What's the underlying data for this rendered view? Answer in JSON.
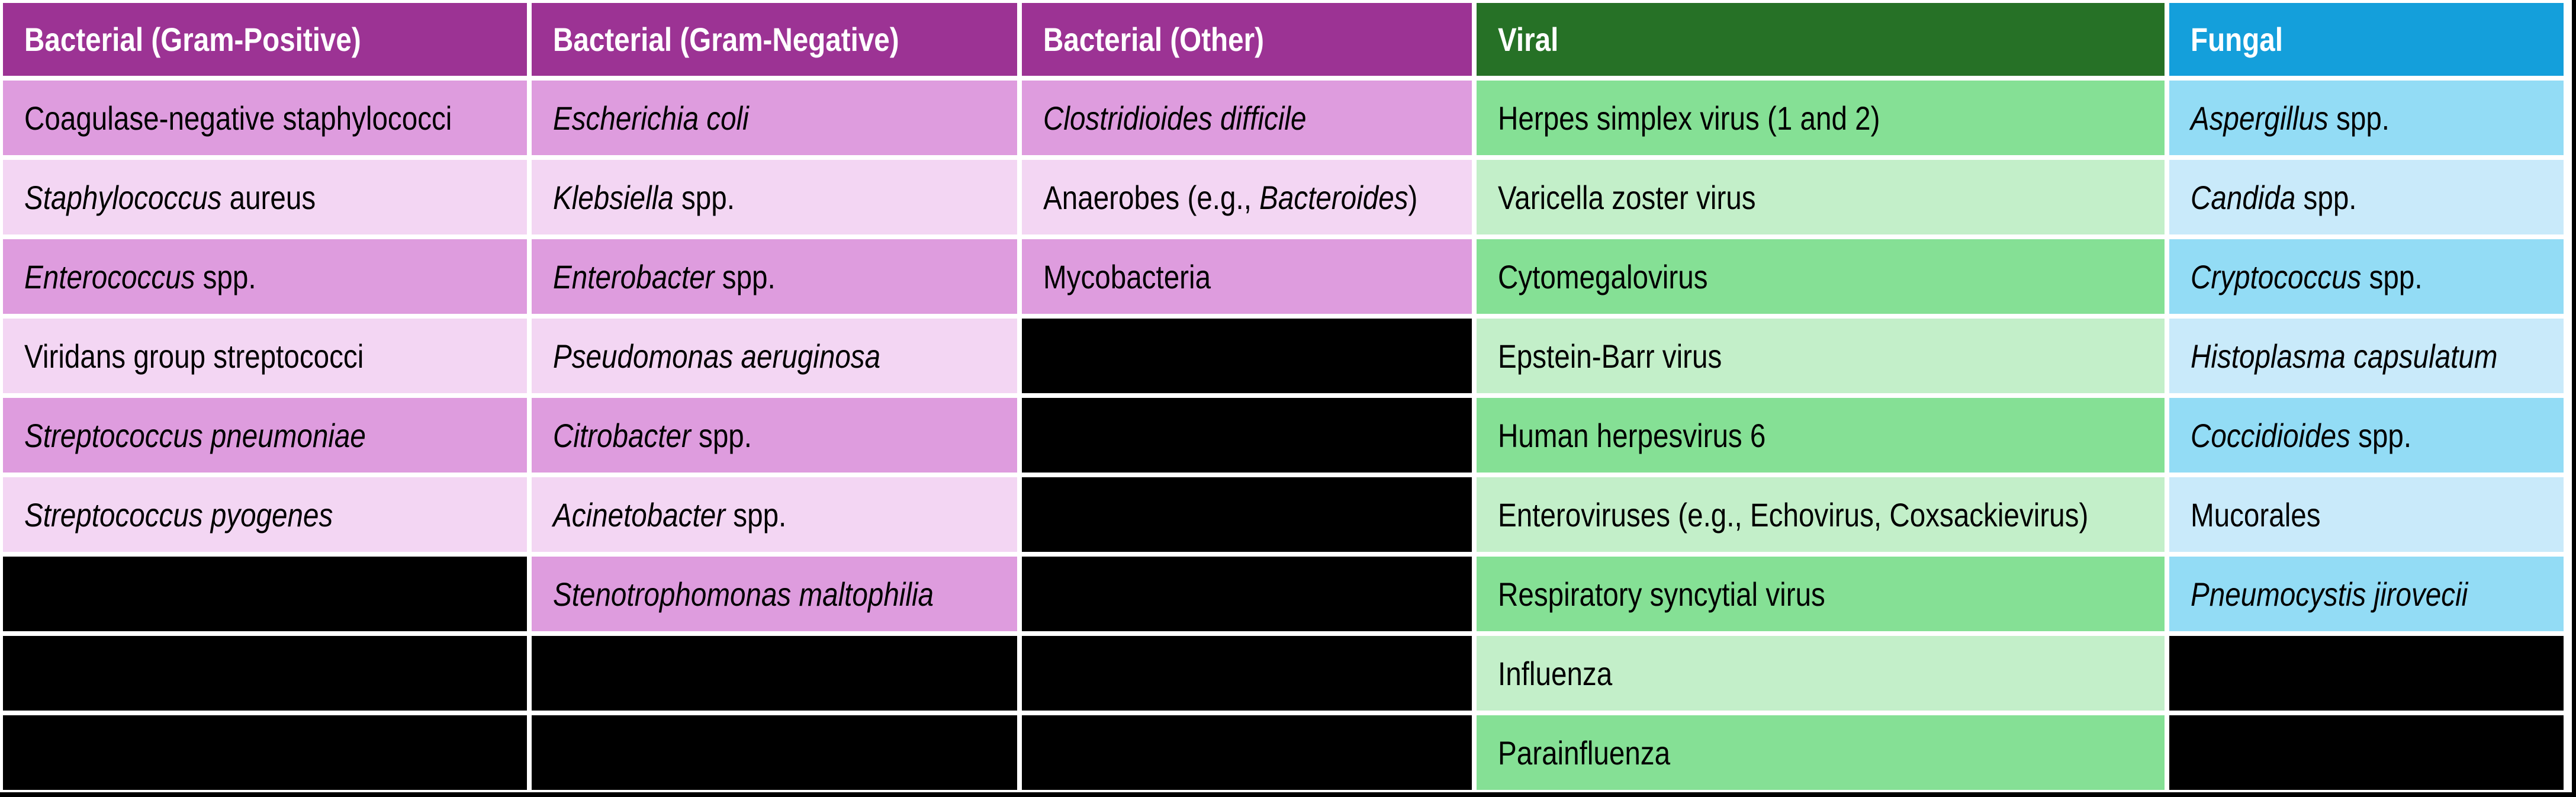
{
  "canvas": {
    "background": "#ffffff",
    "outer_frame_color": "#000000",
    "grid_gap_color": "#ffffff",
    "body_text_color": "#000000"
  },
  "table": {
    "columns": [
      {
        "id": "bacterial-gram-positive",
        "header": {
          "label": "Bacterial (Gram-Positive)",
          "bg": "#9C3394",
          "fg": "#ffffff"
        },
        "shades": {
          "dark": "#DE9CDE",
          "light": "#F3D6F3",
          "black": "#000000"
        },
        "cells": [
          {
            "shade": "dark",
            "runs": [
              {
                "text": "Coagulase-negative staphylococci",
                "italic": false
              }
            ]
          },
          {
            "shade": "light",
            "runs": [
              {
                "text": "Staphylococcus",
                "italic": true
              },
              {
                "text": " aureus",
                "italic": false
              }
            ]
          },
          {
            "shade": "dark",
            "runs": [
              {
                "text": "Enterococcus",
                "italic": true
              },
              {
                "text": " spp.",
                "italic": false
              }
            ]
          },
          {
            "shade": "light",
            "runs": [
              {
                "text": "Viridans group streptococci",
                "italic": false
              }
            ]
          },
          {
            "shade": "dark",
            "runs": [
              {
                "text": "Streptococcus pneumoniae",
                "italic": true
              }
            ]
          },
          {
            "shade": "light",
            "runs": [
              {
                "text": "Streptococcus pyogenes",
                "italic": true
              }
            ]
          },
          {
            "shade": "black",
            "runs": []
          },
          {
            "shade": "black",
            "runs": []
          },
          {
            "shade": "black",
            "runs": []
          }
        ]
      },
      {
        "id": "bacterial-gram-negative",
        "header": {
          "label": "Bacterial (Gram-Negative)",
          "bg": "#9C3394",
          "fg": "#ffffff"
        },
        "shades": {
          "dark": "#DE9CDE",
          "light": "#F3D6F3",
          "black": "#000000"
        },
        "cells": [
          {
            "shade": "dark",
            "runs": [
              {
                "text": "Escherichia coli",
                "italic": true
              }
            ]
          },
          {
            "shade": "light",
            "runs": [
              {
                "text": "Klebsiella",
                "italic": true
              },
              {
                "text": " spp.",
                "italic": false
              }
            ]
          },
          {
            "shade": "dark",
            "runs": [
              {
                "text": "Enterobacter",
                "italic": true
              },
              {
                "text": " spp.",
                "italic": false
              }
            ]
          },
          {
            "shade": "light",
            "runs": [
              {
                "text": "Pseudomonas aeruginosa",
                "italic": true
              }
            ]
          },
          {
            "shade": "dark",
            "runs": [
              {
                "text": "Citrobacter",
                "italic": true
              },
              {
                "text": " spp.",
                "italic": false
              }
            ]
          },
          {
            "shade": "light",
            "runs": [
              {
                "text": "Acinetobacter",
                "italic": true
              },
              {
                "text": " spp.",
                "italic": false
              }
            ]
          },
          {
            "shade": "dark",
            "runs": [
              {
                "text": "Stenotrophomonas maltophilia",
                "italic": true
              }
            ]
          },
          {
            "shade": "black",
            "runs": []
          },
          {
            "shade": "black",
            "runs": []
          }
        ]
      },
      {
        "id": "bacterial-other",
        "header": {
          "label": "Bacterial (Other)",
          "bg": "#9C3394",
          "fg": "#ffffff"
        },
        "shades": {
          "dark": "#DE9CDE",
          "light": "#F3D6F3",
          "black": "#000000"
        },
        "cells": [
          {
            "shade": "dark",
            "runs": [
              {
                "text": "Clostridioides difficile",
                "italic": true
              }
            ]
          },
          {
            "shade": "light",
            "runs": [
              {
                "text": "Anaerobes (e.g., ",
                "italic": false
              },
              {
                "text": "Bacteroides",
                "italic": true
              },
              {
                "text": ")",
                "italic": false
              }
            ]
          },
          {
            "shade": "dark",
            "runs": [
              {
                "text": "Mycobacteria",
                "italic": false
              }
            ]
          },
          {
            "shade": "black",
            "runs": []
          },
          {
            "shade": "black",
            "runs": []
          },
          {
            "shade": "black",
            "runs": []
          },
          {
            "shade": "black",
            "runs": []
          },
          {
            "shade": "black",
            "runs": []
          },
          {
            "shade": "black",
            "runs": []
          }
        ]
      },
      {
        "id": "viral",
        "header": {
          "label": "Viral",
          "bg": "#267126",
          "fg": "#ffffff"
        },
        "shades": {
          "dark": "#85E095",
          "light": "#C3EFC9",
          "black": "#000000"
        },
        "cells": [
          {
            "shade": "dark",
            "runs": [
              {
                "text": "Herpes simplex virus (1 and 2)",
                "italic": false
              }
            ]
          },
          {
            "shade": "light",
            "runs": [
              {
                "text": "Varicella zoster virus",
                "italic": false
              }
            ]
          },
          {
            "shade": "dark",
            "runs": [
              {
                "text": "Cytomegalovirus",
                "italic": false
              }
            ]
          },
          {
            "shade": "light",
            "runs": [
              {
                "text": "Epstein-Barr virus",
                "italic": false
              }
            ]
          },
          {
            "shade": "dark",
            "runs": [
              {
                "text": "Human herpesvirus 6",
                "italic": false
              }
            ]
          },
          {
            "shade": "light",
            "runs": [
              {
                "text": "Enteroviruses (e.g., Echovirus, Coxsackievirus)",
                "italic": false
              }
            ]
          },
          {
            "shade": "dark",
            "runs": [
              {
                "text": "Respiratory syncytial virus",
                "italic": false
              }
            ]
          },
          {
            "shade": "light",
            "runs": [
              {
                "text": "Influenza",
                "italic": false
              }
            ]
          },
          {
            "shade": "dark",
            "runs": [
              {
                "text": "Parainfluenza",
                "italic": false
              }
            ]
          }
        ]
      },
      {
        "id": "fungal",
        "header": {
          "label": "Fungal",
          "bg": "#149FDB",
          "fg": "#ffffff"
        },
        "shades": {
          "dark": "#93DCF5",
          "light": "#C9EAFA",
          "black": "#000000"
        },
        "cells": [
          {
            "shade": "dark",
            "runs": [
              {
                "text": "Aspergillus",
                "italic": true
              },
              {
                "text": " spp.",
                "italic": false
              }
            ]
          },
          {
            "shade": "light",
            "runs": [
              {
                "text": "Candida",
                "italic": true
              },
              {
                "text": " spp.",
                "italic": false
              }
            ]
          },
          {
            "shade": "dark",
            "runs": [
              {
                "text": "Cryptococcus",
                "italic": true
              },
              {
                "text": " spp.",
                "italic": false
              }
            ]
          },
          {
            "shade": "light",
            "runs": [
              {
                "text": "Histoplasma capsulatum",
                "italic": true
              }
            ]
          },
          {
            "shade": "dark",
            "runs": [
              {
                "text": "Coccidioides",
                "italic": true
              },
              {
                "text": " spp.",
                "italic": false
              }
            ]
          },
          {
            "shade": "light",
            "runs": [
              {
                "text": "Mucorales",
                "italic": false
              }
            ]
          },
          {
            "shade": "dark",
            "runs": [
              {
                "text": "Pneumocystis jirovecii",
                "italic": true
              }
            ]
          },
          {
            "shade": "black",
            "runs": []
          },
          {
            "shade": "black",
            "runs": []
          }
        ]
      }
    ]
  },
  "chart_data": {
    "type": "table",
    "title": "",
    "columns": [
      "Bacterial (Gram-Positive)",
      "Bacterial (Gram-Negative)",
      "Bacterial (Other)",
      "Viral",
      "Fungal"
    ],
    "header_colors": [
      "#9C3394",
      "#9C3394",
      "#9C3394",
      "#267126",
      "#149FDB"
    ],
    "row_shade_pattern": [
      "dark",
      "light",
      "dark",
      "light",
      "dark",
      "light",
      "dark",
      "light",
      "dark"
    ],
    "rows": [
      [
        "Coagulase-negative staphylococci",
        "Escherichia coli",
        "Clostridioides difficile",
        "Herpes simplex virus (1 and 2)",
        "Aspergillus spp."
      ],
      [
        "Staphylococcus aureus",
        "Klebsiella spp.",
        "Anaerobes (e.g., Bacteroides)",
        "Varicella zoster virus",
        "Candida spp."
      ],
      [
        "Enterococcus spp.",
        "Enterobacter spp.",
        "Mycobacteria",
        "Cytomegalovirus",
        "Cryptococcus spp."
      ],
      [
        "Viridans group streptococci",
        "Pseudomonas aeruginosa",
        "",
        "Epstein-Barr virus",
        "Histoplasma capsulatum"
      ],
      [
        "Streptococcus pneumoniae",
        "Citrobacter spp.",
        "",
        "Human herpesvirus 6",
        "Coccidioides spp."
      ],
      [
        "Streptococcus pyogenes",
        "Acinetobacter spp.",
        "",
        "Enteroviruses (e.g., Echovirus, Coxsackievirus)",
        "Mucorales"
      ],
      [
        "",
        "Stenotrophomonas maltophilia",
        "",
        "Respiratory syncytial virus",
        "Pneumocystis jirovecii"
      ],
      [
        "",
        "",
        "",
        "Influenza",
        ""
      ],
      [
        "",
        "",
        "",
        "Parainfluenza",
        ""
      ]
    ],
    "legend_position": "none",
    "grid": "white gaps between colored cells; empty cells rendered solid black"
  }
}
